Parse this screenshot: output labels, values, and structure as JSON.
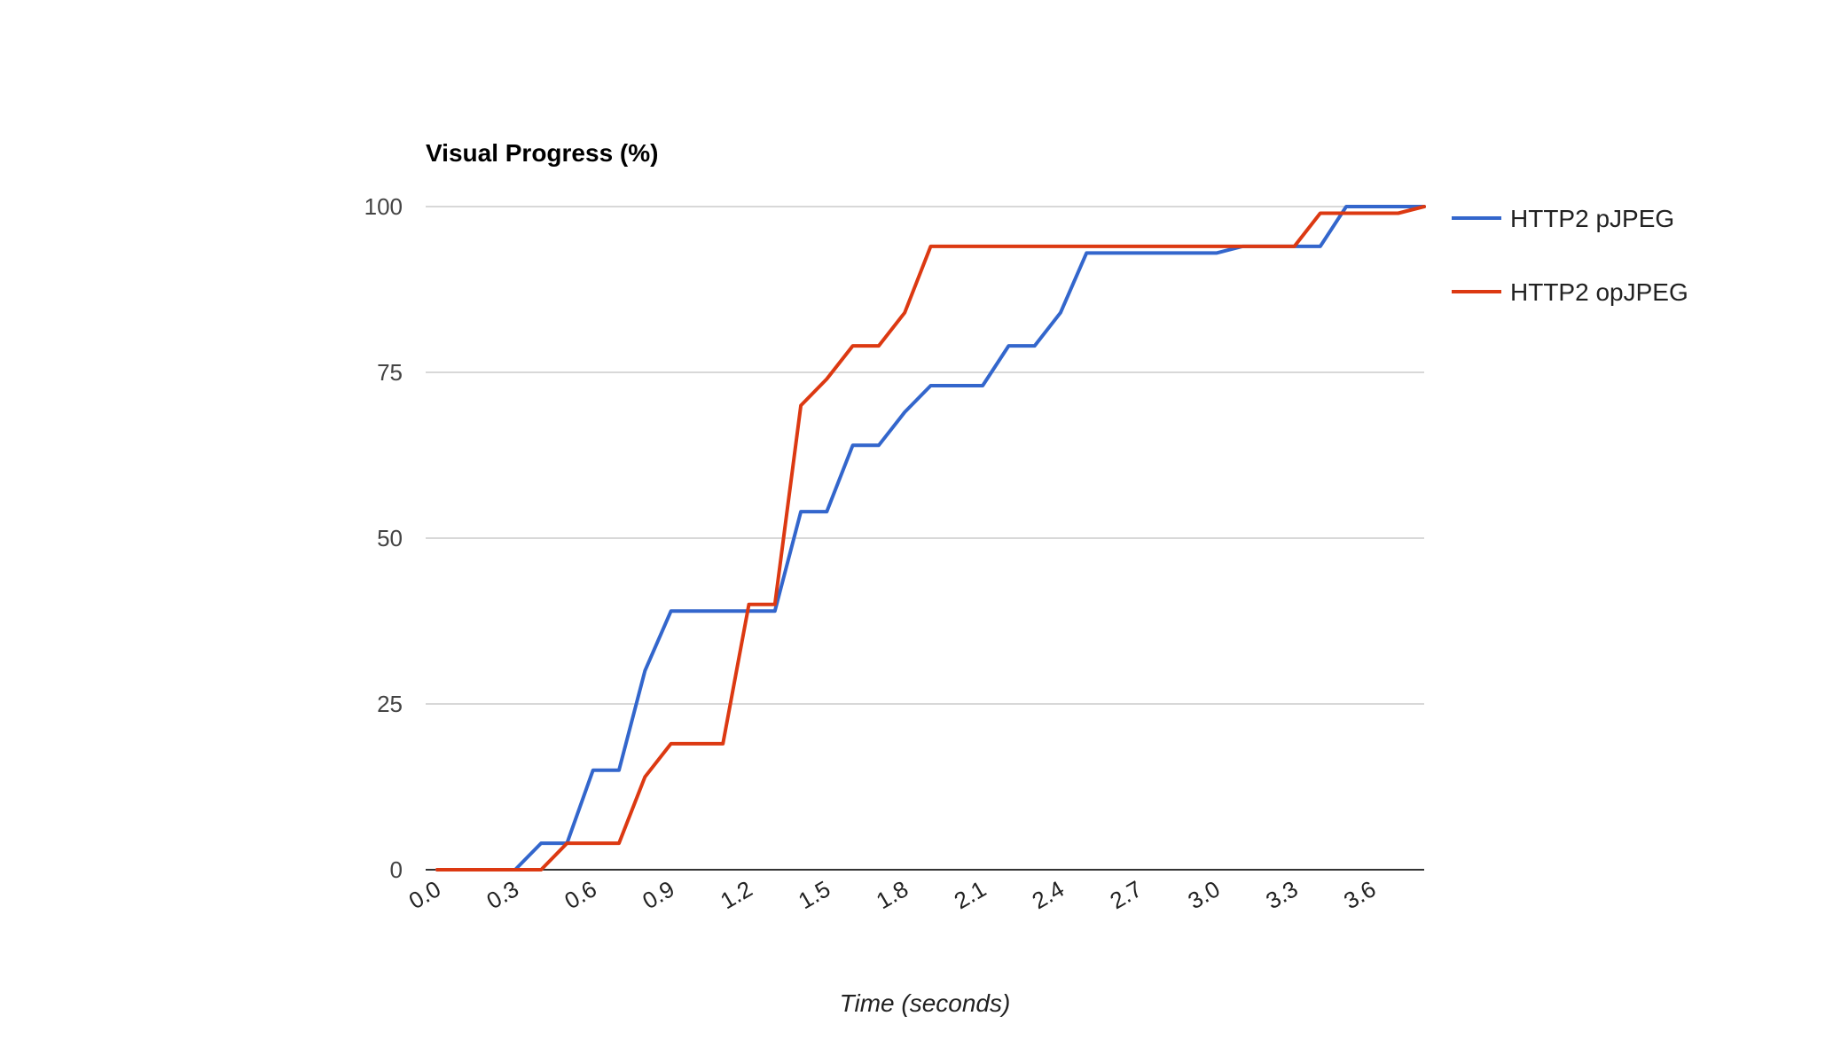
{
  "chart_data": {
    "type": "line",
    "title": "Visual Progress (%)",
    "xlabel": "Time (seconds)",
    "ylabel": "",
    "xlim": [
      0,
      3.8
    ],
    "ylim": [
      0,
      100
    ],
    "x_ticks": [
      "0.0",
      "0.3",
      "0.6",
      "0.9",
      "1.2",
      "1.5",
      "1.8",
      "2.1",
      "2.4",
      "2.7",
      "3.0",
      "3.3",
      "3.6"
    ],
    "y_ticks": [
      "0",
      "25",
      "50",
      "75",
      "100"
    ],
    "grid": true,
    "legend_position": "right",
    "series": [
      {
        "name": "HTTP2 pJPEG",
        "color": "#3366cc",
        "points": [
          [
            0.0,
            0
          ],
          [
            0.3,
            0
          ],
          [
            0.4,
            4
          ],
          [
            0.5,
            4
          ],
          [
            0.6,
            15
          ],
          [
            0.7,
            15
          ],
          [
            0.8,
            30
          ],
          [
            0.9,
            39
          ],
          [
            1.0,
            39
          ],
          [
            1.1,
            39
          ],
          [
            1.2,
            39
          ],
          [
            1.3,
            39
          ],
          [
            1.4,
            54
          ],
          [
            1.5,
            54
          ],
          [
            1.6,
            64
          ],
          [
            1.7,
            64
          ],
          [
            1.8,
            69
          ],
          [
            1.9,
            73
          ],
          [
            2.0,
            73
          ],
          [
            2.1,
            73
          ],
          [
            2.2,
            79
          ],
          [
            2.3,
            79
          ],
          [
            2.4,
            84
          ],
          [
            2.5,
            93
          ],
          [
            2.6,
            93
          ],
          [
            2.7,
            93
          ],
          [
            2.8,
            93
          ],
          [
            2.9,
            93
          ],
          [
            3.0,
            93
          ],
          [
            3.1,
            94
          ],
          [
            3.2,
            94
          ],
          [
            3.3,
            94
          ],
          [
            3.4,
            94
          ],
          [
            3.5,
            100
          ],
          [
            3.6,
            100
          ],
          [
            3.7,
            100
          ],
          [
            3.8,
            100
          ]
        ]
      },
      {
        "name": "HTTP2 opJPEG",
        "color": "#dc3912",
        "points": [
          [
            0.0,
            0
          ],
          [
            0.3,
            0
          ],
          [
            0.4,
            0
          ],
          [
            0.5,
            4
          ],
          [
            0.6,
            4
          ],
          [
            0.7,
            4
          ],
          [
            0.8,
            14
          ],
          [
            0.9,
            19
          ],
          [
            1.0,
            19
          ],
          [
            1.1,
            19
          ],
          [
            1.2,
            40
          ],
          [
            1.3,
            40
          ],
          [
            1.4,
            70
          ],
          [
            1.5,
            74
          ],
          [
            1.6,
            79
          ],
          [
            1.7,
            79
          ],
          [
            1.8,
            84
          ],
          [
            1.9,
            94
          ],
          [
            2.0,
            94
          ],
          [
            2.1,
            94
          ],
          [
            2.2,
            94
          ],
          [
            2.3,
            94
          ],
          [
            2.4,
            94
          ],
          [
            2.5,
            94
          ],
          [
            2.6,
            94
          ],
          [
            2.7,
            94
          ],
          [
            2.8,
            94
          ],
          [
            2.9,
            94
          ],
          [
            3.0,
            94
          ],
          [
            3.1,
            94
          ],
          [
            3.2,
            94
          ],
          [
            3.3,
            94
          ],
          [
            3.4,
            99
          ],
          [
            3.5,
            99
          ],
          [
            3.6,
            99
          ],
          [
            3.7,
            99
          ],
          [
            3.8,
            100
          ]
        ]
      }
    ]
  }
}
